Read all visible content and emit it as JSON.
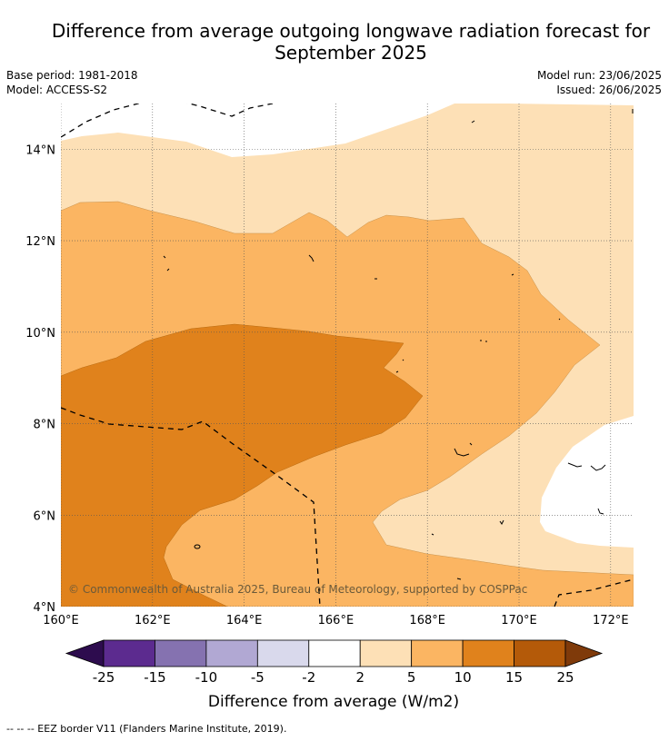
{
  "title_line1": "Difference from average outgoing longwave radiation forecast for",
  "title_line2": "September 2025",
  "base_period": "Base period: 1981-2018",
  "model": "Model: ACCESS-S2",
  "model_run": "Model run: 23/06/2025",
  "issued": "Issued: 26/06/2025",
  "copyright": "© Commonwealth of Australia 2025, Bureau of Meteorology, supported by COSPPac",
  "lat_labels": [
    "14°N",
    "12°N",
    "10°N",
    "8°N",
    "6°N",
    "4°N"
  ],
  "lon_labels": [
    "160°E",
    "162°E",
    "164°E",
    "166°E",
    "168°E",
    "170°E",
    "172°E"
  ],
  "colorbar": {
    "ticks": [
      "-25",
      "-15",
      "-10",
      "-5",
      "-2",
      "2",
      "5",
      "10",
      "15",
      "25"
    ],
    "colors": [
      "#2d0c4e",
      "#5c2b8f",
      "#8572b0",
      "#b1a8d3",
      "#d9d9ec",
      "#ffffff",
      "#fde0b6",
      "#fbb562",
      "#e0821c",
      "#b45a09",
      "#7f3a0a"
    ],
    "title": "Difference from average (W/m2)"
  },
  "footnote": "-- -- -- EEZ border V11 (Flanders Marine Institute, 2019).",
  "zone_colors": {
    "white": "#ffffff",
    "light_orange": "#fde0b6",
    "mid_orange": "#fbb562",
    "dark_orange": "#e0821c"
  }
}
